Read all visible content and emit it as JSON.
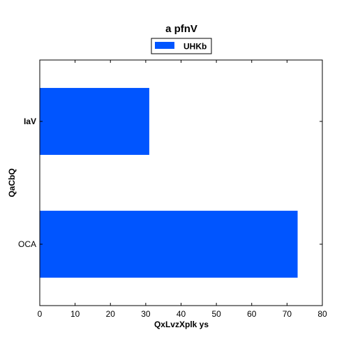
{
  "chart_data": {
    "type": "bar",
    "orientation": "horizontal",
    "title": "a pfnV",
    "xlabel": "QxLvzXplk ys",
    "ylabel": "QaCbQ",
    "categories": [
      "OCA",
      "IaV"
    ],
    "series": [
      {
        "name": "UHKb",
        "color": "#0055ff",
        "values": [
          73,
          31
        ]
      }
    ],
    "xlim": [
      0,
      80
    ],
    "xticks": [
      0,
      10,
      20,
      30,
      40,
      50,
      60,
      70,
      80
    ],
    "xtick_labels": [
      "0",
      "10",
      "20",
      "30",
      "40",
      "50",
      "60",
      "70",
      "80"
    ],
    "legend_position": "top-center",
    "grid": false
  }
}
